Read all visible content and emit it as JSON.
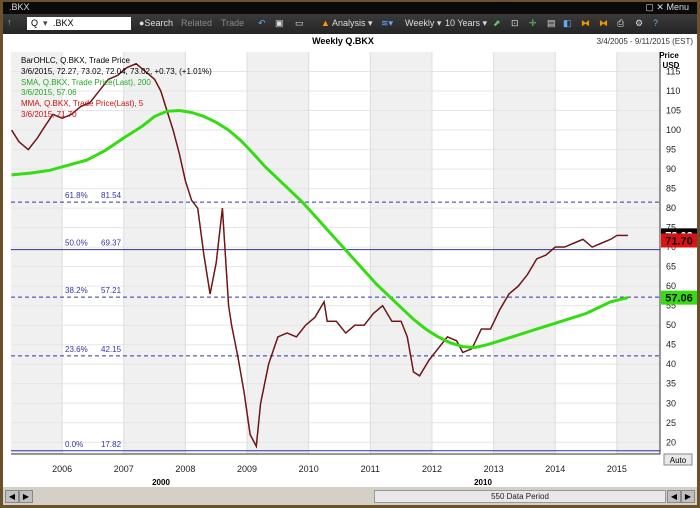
{
  "window": {
    "title": ".BKX",
    "menu_label": "Menu"
  },
  "toolbar": {
    "symbol_value": "Q",
    "symbol_name": ".BKX",
    "search_label": "Search",
    "related_label": "Related",
    "trade_label": "Trade",
    "analysis_label": "Analysis",
    "weekly_label": "Weekly",
    "range_label": "10 Years"
  },
  "header": {
    "chart_title": "Weekly Q.BKX",
    "date_range": "3/4/2005 - 9/11/2015 (EST)"
  },
  "legend": {
    "line1": "BarOHLC, Q.BKX, Trade Price",
    "line2": "3/6/2015, 72.27, 73.02, 72.04, 73.02, +0.73, (+1.01%)",
    "sma_label": "SMA, Q.BKX, Trade Price(Last), 200",
    "sma_value": "3/6/2015, 57.06",
    "mma_label": "MMA, Q.BKX, Trade Price(Last), 5",
    "mma_value": "3/6/2015, 71.70"
  },
  "price_axis": {
    "title": "Price",
    "unit": "USD"
  },
  "footer": {
    "auto_label": "Auto",
    "period_label": "550 Data Period",
    "decade_2000": "2000",
    "decade_2010": "2010"
  },
  "colors": {
    "price": "#000000",
    "sma": "#33dd11",
    "mma": "#dd1111",
    "fib": "#3333aa"
  },
  "chart_data": {
    "type": "line",
    "title": "Weekly Q.BKX",
    "ylabel": "Price USD",
    "ylim": [
      17,
      120
    ],
    "yticks": [
      20,
      25,
      30,
      35,
      40,
      45,
      50,
      55,
      60,
      65,
      70,
      75,
      80,
      85,
      90,
      95,
      100,
      105,
      110,
      115
    ],
    "xticks": [
      "2006",
      "2007",
      "2008",
      "2009",
      "2010",
      "2011",
      "2012",
      "2013",
      "2014",
      "2015"
    ],
    "xlim": [
      2005.17,
      2015.7
    ],
    "fib_levels": [
      {
        "pct": "61.8%",
        "value": 81.54
      },
      {
        "pct": "50.0%",
        "value": 69.37
      },
      {
        "pct": "38.2%",
        "value": 57.21
      },
      {
        "pct": "23.6%",
        "value": 42.15
      },
      {
        "pct": "0.0%",
        "value": 17.82
      }
    ],
    "last_values": {
      "price": "73.02",
      "mma": "71.70",
      "sma": "57.06"
    },
    "series": [
      {
        "name": "BarOHLC, Q.BKX, Trade Price",
        "x": [
          2005.18,
          2005.3,
          2005.45,
          2005.6,
          2005.72,
          2005.85,
          2006.0,
          2006.15,
          2006.3,
          2006.45,
          2006.6,
          2006.75,
          2006.9,
          2007.05,
          2007.2,
          2007.35,
          2007.5,
          2007.6,
          2007.7,
          2007.8,
          2007.9,
          2008.0,
          2008.1,
          2008.2,
          2008.3,
          2008.4,
          2008.5,
          2008.6,
          2008.7,
          2008.75,
          2008.85,
          2008.95,
          2009.05,
          2009.15,
          2009.22,
          2009.35,
          2009.5,
          2009.65,
          2009.8,
          2009.95,
          2010.1,
          2010.25,
          2010.3,
          2010.45,
          2010.6,
          2010.75,
          2010.9,
          2011.05,
          2011.2,
          2011.35,
          2011.5,
          2011.6,
          2011.7,
          2011.8,
          2011.95,
          2012.1,
          2012.25,
          2012.4,
          2012.5,
          2012.65,
          2012.8,
          2012.95,
          2013.1,
          2013.25,
          2013.4,
          2013.55,
          2013.7,
          2013.85,
          2014.0,
          2014.15,
          2014.3,
          2014.45,
          2014.6,
          2014.75,
          2014.9,
          2015.0,
          2015.1,
          2015.18
        ],
        "values": [
          100,
          97,
          95,
          98,
          101,
          104,
          103,
          104,
          106,
          107,
          110,
          113,
          114,
          116,
          117,
          115,
          113,
          110,
          105,
          100,
          94,
          87,
          82,
          80,
          68,
          58,
          66,
          80,
          55,
          50,
          42,
          33,
          22,
          19,
          30,
          40,
          47,
          48,
          47,
          50,
          52,
          56,
          51,
          51,
          48,
          50,
          50,
          53,
          55,
          51,
          51,
          47,
          38,
          37,
          41,
          44,
          47,
          46,
          43,
          44,
          49,
          49,
          54,
          58,
          60,
          63,
          67,
          68,
          70,
          70,
          71,
          72,
          70,
          71,
          72,
          73,
          73,
          73.02
        ]
      },
      {
        "name": "SMA, Q.BKX, Trade Price(Last), 200",
        "x": [
          2005.18,
          2005.5,
          2005.8,
          2006.1,
          2006.4,
          2006.7,
          2007.0,
          2007.3,
          2007.5,
          2007.7,
          2007.9,
          2008.1,
          2008.3,
          2008.5,
          2008.7,
          2008.9,
          2009.1,
          2009.3,
          2009.5,
          2009.7,
          2009.9,
          2010.1,
          2010.3,
          2010.5,
          2010.7,
          2010.9,
          2011.1,
          2011.3,
          2011.5,
          2011.7,
          2011.9,
          2012.1,
          2012.3,
          2012.5,
          2012.7,
          2012.9,
          2013.1,
          2013.3,
          2013.5,
          2013.7,
          2013.9,
          2014.1,
          2014.3,
          2014.5,
          2014.7,
          2014.9,
          2015.18
        ],
        "values": [
          88.5,
          89,
          89.7,
          91,
          92.3,
          94.8,
          98,
          101,
          103.5,
          104.8,
          105,
          104.5,
          103.5,
          102,
          100,
          97.3,
          94,
          90.5,
          87.5,
          84.5,
          81.5,
          78,
          74.5,
          71,
          67.5,
          64,
          60.5,
          57.5,
          54.5,
          51.5,
          49,
          47,
          45.5,
          44.5,
          44.3,
          45,
          46,
          47,
          48,
          49,
          50,
          51,
          52,
          53,
          54.5,
          56,
          57.06
        ]
      }
    ]
  }
}
